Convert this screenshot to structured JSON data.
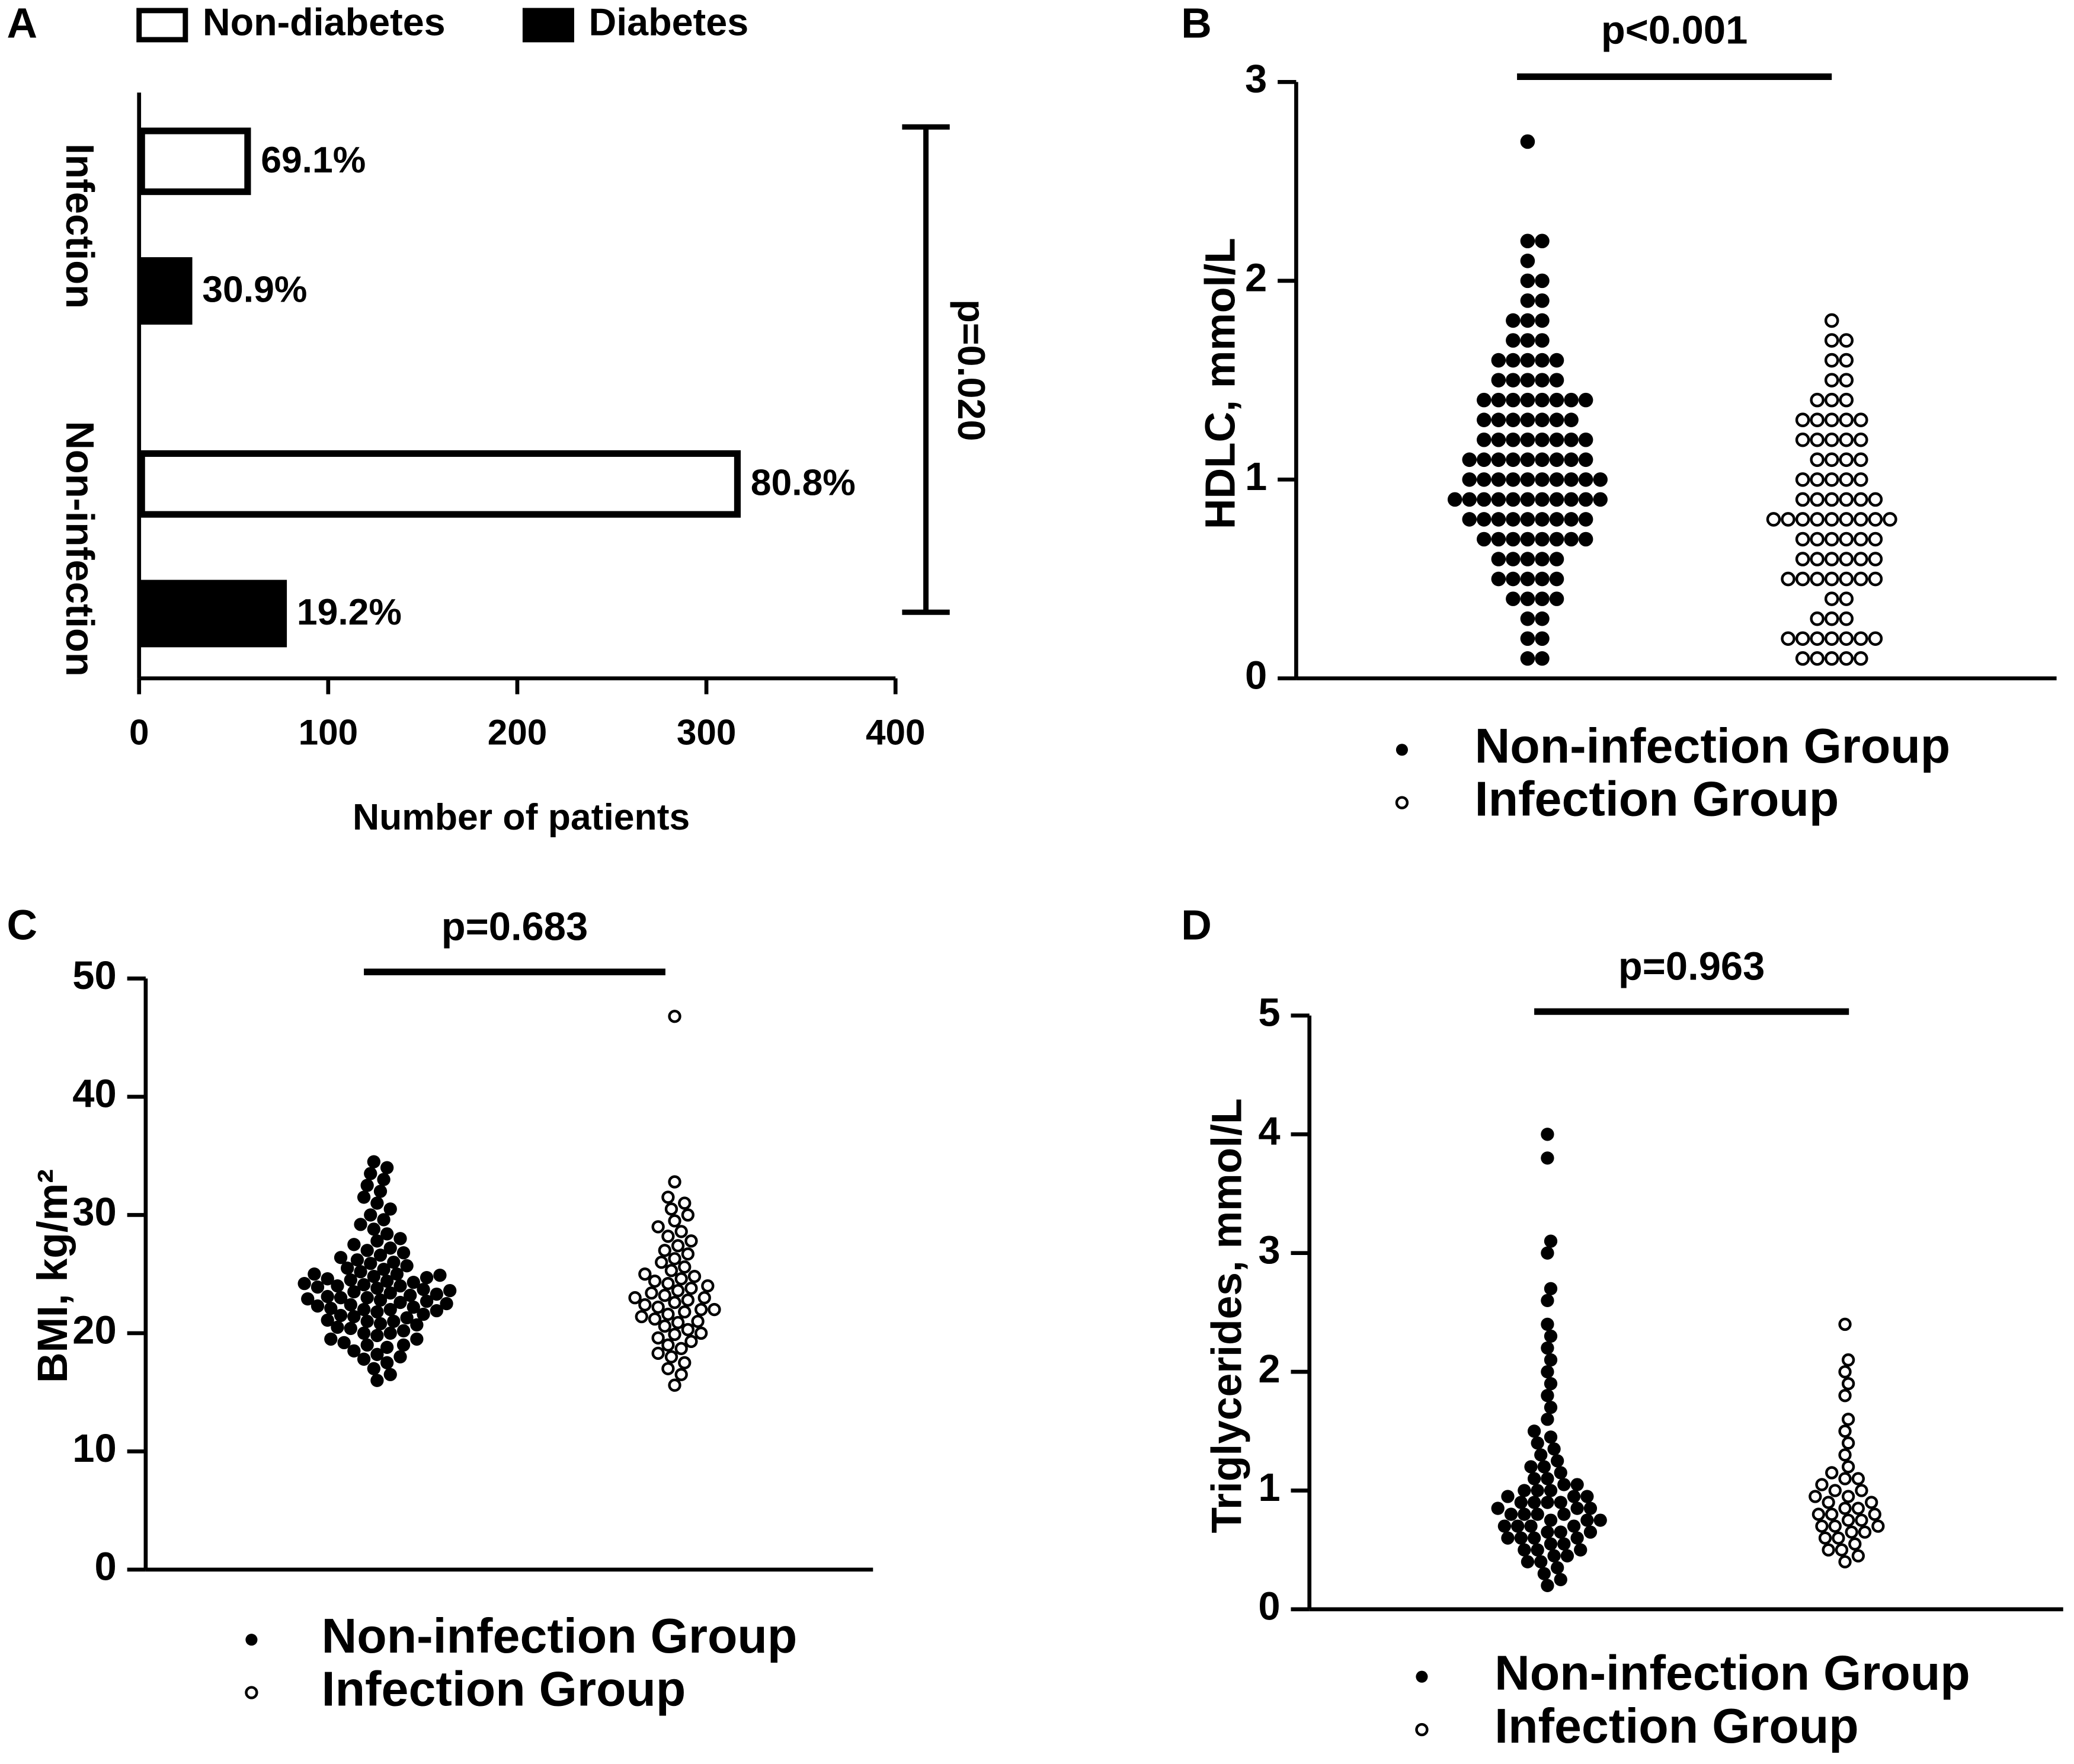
{
  "chart_data": [
    {
      "type": "bar",
      "orientation": "horizontal",
      "panel": "A",
      "xlabel": "Number of patients",
      "categories": [
        "Infection",
        "Non-infection"
      ],
      "series": [
        {
          "name": "Non-diabetes",
          "color": "#ffffff",
          "edgecolor": "#000000",
          "values": [
            56,
            315
          ],
          "labels": [
            "69.1%",
            "80.8%"
          ]
        },
        {
          "name": "Diabetes",
          "color": "#000000",
          "edgecolor": "#000000",
          "values": [
            25,
            75
          ],
          "labels": [
            "30.9%",
            "19.2%"
          ]
        }
      ],
      "xlim": [
        0,
        400
      ],
      "xticks": [
        0,
        100,
        200,
        300,
        400
      ],
      "annotation": "p=0.020",
      "legend": "top"
    },
    {
      "type": "swarm",
      "panel": "B",
      "ylabel": "HDLC, mmol/L",
      "annotation": "p<0.001",
      "ylim": [
        0,
        3
      ],
      "yticks": [
        0,
        1,
        2,
        3
      ],
      "legend": "bottom",
      "series": [
        {
          "name": "Non-infection Group",
          "color": "#000000",
          "marker": "filled",
          "values": [
            0.1,
            0.1,
            0.2,
            0.2,
            0.3,
            0.3,
            0.4,
            0.4,
            0.4,
            0.4,
            0.5,
            0.5,
            0.5,
            0.5,
            0.5,
            0.6,
            0.6,
            0.6,
            0.6,
            0.6,
            0.7,
            0.7,
            0.7,
            0.7,
            0.7,
            0.7,
            0.7,
            0.7,
            0.8,
            0.8,
            0.8,
            0.8,
            0.8,
            0.8,
            0.8,
            0.8,
            0.8,
            0.9,
            0.9,
            0.9,
            0.9,
            0.9,
            0.9,
            0.9,
            0.9,
            0.9,
            0.9,
            0.9,
            1.0,
            1.0,
            1.0,
            1.0,
            1.0,
            1.0,
            1.0,
            1.0,
            1.0,
            1.0,
            1.1,
            1.1,
            1.1,
            1.1,
            1.1,
            1.1,
            1.1,
            1.1,
            1.1,
            1.2,
            1.2,
            1.2,
            1.2,
            1.2,
            1.2,
            1.2,
            1.2,
            1.3,
            1.3,
            1.3,
            1.3,
            1.3,
            1.3,
            1.3,
            1.4,
            1.4,
            1.4,
            1.4,
            1.4,
            1.4,
            1.4,
            1.4,
            1.5,
            1.5,
            1.5,
            1.5,
            1.5,
            1.6,
            1.6,
            1.6,
            1.6,
            1.6,
            1.7,
            1.7,
            1.7,
            1.8,
            1.8,
            1.8,
            1.9,
            1.9,
            2.0,
            2.0,
            2.1,
            2.2,
            2.2,
            2.7
          ]
        },
        {
          "name": "Infection Group",
          "color": "#000000",
          "marker": "open",
          "values": [
            0.1,
            0.1,
            0.1,
            0.1,
            0.1,
            0.2,
            0.2,
            0.2,
            0.2,
            0.2,
            0.2,
            0.2,
            0.3,
            0.3,
            0.3,
            0.4,
            0.4,
            0.5,
            0.5,
            0.5,
            0.5,
            0.5,
            0.5,
            0.5,
            0.6,
            0.6,
            0.6,
            0.6,
            0.6,
            0.6,
            0.7,
            0.7,
            0.7,
            0.7,
            0.7,
            0.7,
            0.8,
            0.8,
            0.8,
            0.8,
            0.8,
            0.8,
            0.8,
            0.8,
            0.8,
            0.9,
            0.9,
            0.9,
            0.9,
            0.9,
            0.9,
            1.0,
            1.0,
            1.0,
            1.0,
            1.0,
            1.1,
            1.1,
            1.1,
            1.1,
            1.2,
            1.2,
            1.2,
            1.2,
            1.2,
            1.3,
            1.3,
            1.3,
            1.3,
            1.3,
            1.4,
            1.4,
            1.4,
            1.5,
            1.5,
            1.6,
            1.6,
            1.7,
            1.7,
            1.8
          ]
        }
      ]
    },
    {
      "type": "swarm",
      "panel": "C",
      "ylabel": "BMI, kg/m²",
      "annotation": "p=0.683",
      "ylim": [
        0,
        50
      ],
      "yticks": [
        0,
        10,
        20,
        30,
        40,
        50
      ],
      "legend": "bottom",
      "series": [
        {
          "name": "Non-infection Group",
          "color": "#000000",
          "marker": "filled",
          "values": [
            16,
            16.5,
            17,
            17.5,
            17.8,
            18,
            18.2,
            18.5,
            18.8,
            19,
            19,
            19.2,
            19.5,
            19.5,
            19.8,
            20,
            20,
            20.2,
            20.4,
            20.5,
            20.7,
            20.8,
            21,
            21,
            21.1,
            21.3,
            21.4,
            21.5,
            21.6,
            21.8,
            21.9,
            22,
            22,
            22.1,
            22.2,
            22.3,
            22.4,
            22.5,
            22.6,
            22.7,
            22.8,
            22.9,
            23,
            23,
            23.1,
            23.2,
            23.3,
            23.4,
            23.5,
            23.6,
            23.7,
            23.8,
            23.9,
            24,
            24,
            24.1,
            24.2,
            24.3,
            24.4,
            24.5,
            24.6,
            24.7,
            24.8,
            24.9,
            25,
            25,
            25.2,
            25.4,
            25.5,
            25.7,
            25.9,
            26,
            26.2,
            26.4,
            26.6,
            26.8,
            27,
            27.2,
            27.5,
            27.8,
            28,
            28.4,
            28.8,
            29.2,
            29.6,
            30,
            30.5,
            31,
            31.5,
            32,
            32.5,
            33,
            33.5,
            34,
            34.5
          ]
        },
        {
          "name": "Infection Group",
          "color": "#000000",
          "marker": "open",
          "values": [
            15.6,
            16.5,
            17,
            17.5,
            18,
            18.3,
            18.7,
            19,
            19.3,
            19.6,
            19.9,
            20,
            20.3,
            20.6,
            20.9,
            21,
            21.2,
            21.4,
            21.6,
            21.8,
            22,
            22,
            22.2,
            22.4,
            22.6,
            22.8,
            23,
            23,
            23.2,
            23.4,
            23.6,
            23.8,
            24,
            24.2,
            24.4,
            24.6,
            24.8,
            25,
            25.3,
            25.6,
            26,
            26.3,
            26.7,
            27,
            27.4,
            27.8,
            28.2,
            28.6,
            29,
            29.5,
            30,
            30.5,
            31,
            31.5,
            32.8,
            46.8
          ]
        }
      ]
    },
    {
      "type": "swarm",
      "panel": "D",
      "ylabel": "Triglycerides, mmol/L",
      "annotation": "p=0.963",
      "ylim": [
        0,
        5
      ],
      "yticks": [
        0,
        1,
        2,
        3,
        4,
        5
      ],
      "legend": "bottom",
      "series": [
        {
          "name": "Non-infection Group",
          "color": "#000000",
          "marker": "filled",
          "values": [
            0.2,
            0.25,
            0.3,
            0.35,
            0.4,
            0.4,
            0.45,
            0.45,
            0.5,
            0.5,
            0.5,
            0.55,
            0.55,
            0.6,
            0.6,
            0.6,
            0.6,
            0.65,
            0.65,
            0.65,
            0.7,
            0.7,
            0.7,
            0.7,
            0.75,
            0.75,
            0.75,
            0.8,
            0.8,
            0.8,
            0.8,
            0.85,
            0.85,
            0.85,
            0.9,
            0.9,
            0.9,
            0.9,
            0.95,
            0.95,
            0.95,
            1.0,
            1.0,
            1.0,
            1.05,
            1.05,
            1.1,
            1.1,
            1.15,
            1.2,
            1.2,
            1.25,
            1.3,
            1.35,
            1.4,
            1.45,
            1.5,
            1.6,
            1.7,
            1.8,
            1.9,
            2.0,
            2.1,
            2.2,
            2.3,
            2.4,
            2.6,
            2.7,
            3.0,
            3.1,
            3.8,
            4.0
          ]
        },
        {
          "name": "Infection Group",
          "color": "#000000",
          "marker": "open",
          "values": [
            0.4,
            0.45,
            0.5,
            0.5,
            0.55,
            0.6,
            0.6,
            0.65,
            0.65,
            0.7,
            0.7,
            0.7,
            0.75,
            0.75,
            0.8,
            0.8,
            0.8,
            0.85,
            0.85,
            0.9,
            0.9,
            0.95,
            0.95,
            1.0,
            1.0,
            1.05,
            1.1,
            1.1,
            1.15,
            1.2,
            1.3,
            1.4,
            1.5,
            1.6,
            1.8,
            1.9,
            2.0,
            2.1,
            2.4
          ]
        }
      ]
    }
  ]
}
